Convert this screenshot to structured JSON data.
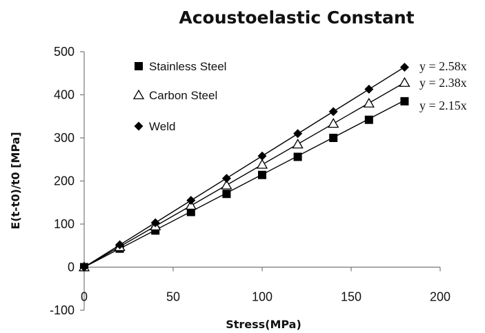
{
  "chart_data": {
    "type": "line",
    "title": "Acoustoelastic Constant",
    "xlabel": "Stress(MPa)",
    "ylabel": "E(t-t0)/t0 [MPa]",
    "xlim": [
      0,
      200
    ],
    "ylim": [
      -100,
      500
    ],
    "x_ticks": [
      0,
      50,
      100,
      150,
      200
    ],
    "y_ticks": [
      -100,
      0,
      100,
      200,
      300,
      400,
      500
    ],
    "grid": false,
    "legend_position": "top-left",
    "series": [
      {
        "name": "Stainless Steel",
        "marker": "filled-square",
        "color": "#000000",
        "x": [
          0,
          20,
          40,
          60,
          80,
          100,
          120,
          140,
          160,
          180
        ],
        "y": [
          0,
          43,
          85,
          128,
          170,
          214,
          256,
          300,
          342,
          385
        ],
        "trendline": "y = 2.15x",
        "slope": 2.15
      },
      {
        "name": "Carbon Steel",
        "marker": "open-triangle",
        "color": "#000000",
        "x": [
          0,
          20,
          40,
          60,
          80,
          100,
          120,
          140,
          160,
          180
        ],
        "y": [
          0,
          47,
          95,
          143,
          190,
          238,
          285,
          333,
          380,
          428
        ],
        "trendline": "y = 2.38x",
        "slope": 2.38
      },
      {
        "name": "Weld",
        "marker": "filled-diamond",
        "color": "#000000",
        "x": [
          0,
          20,
          40,
          60,
          80,
          100,
          120,
          140,
          160,
          180
        ],
        "y": [
          0,
          52,
          103,
          155,
          206,
          258,
          310,
          361,
          413,
          464
        ],
        "trendline": "y = 2.58x",
        "slope": 2.58
      }
    ]
  }
}
